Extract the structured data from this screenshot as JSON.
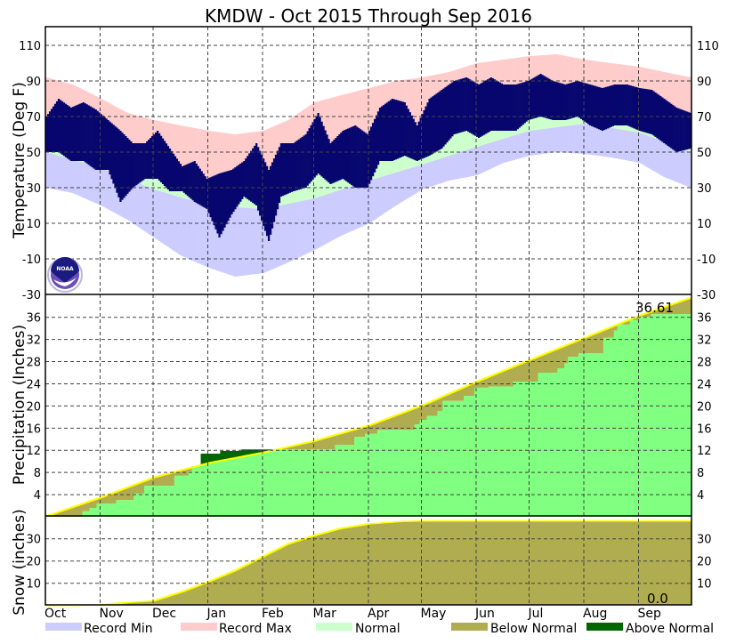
{
  "chart_data": [
    {
      "type": "bar",
      "panel": "temperature",
      "title": "KMDW - Oct 2015 Through Sep 2016",
      "ylabel": "Temperature (Deg F)",
      "ylim": [
        -30,
        120
      ],
      "yticks": [
        110,
        90,
        70,
        50,
        30,
        10,
        -10,
        -30
      ],
      "x_unit": "day of period (0 = Oct 1 2015)",
      "months": [
        {
          "label": "Oct",
          "day": 0
        },
        {
          "label": "Nov",
          "day": 31
        },
        {
          "label": "Dec",
          "day": 61
        },
        {
          "label": "Jan",
          "day": 92
        },
        {
          "label": "Feb",
          "day": 123
        },
        {
          "label": "Mar",
          "day": 152
        },
        {
          "label": "Apr",
          "day": 183
        },
        {
          "label": "May",
          "day": 213
        },
        {
          "label": "Jun",
          "day": 244
        },
        {
          "label": "Jul",
          "day": 274
        },
        {
          "label": "Aug",
          "day": 305
        },
        {
          "label": "Sep",
          "day": 336
        }
      ],
      "total_days": 366,
      "record": {
        "days": [
          0,
          15,
          31,
          46,
          61,
          76,
          92,
          107,
          123,
          137,
          152,
          167,
          183,
          198,
          213,
          228,
          244,
          259,
          274,
          289,
          305,
          320,
          336,
          350,
          365
        ],
        "max": [
          92,
          88,
          80,
          72,
          68,
          65,
          62,
          60,
          62,
          68,
          78,
          82,
          86,
          90,
          92,
          95,
          100,
          102,
          104,
          105,
          102,
          100,
          98,
          95,
          92
        ],
        "min": [
          30,
          27,
          20,
          12,
          2,
          -8,
          -15,
          -20,
          -18,
          -12,
          -5,
          3,
          10,
          20,
          29,
          34,
          37,
          44,
          48,
          50,
          49,
          47,
          44,
          36,
          30
        ]
      },
      "normal": {
        "days": [
          0,
          31,
          61,
          92,
          123,
          152,
          183,
          213,
          244,
          274,
          305,
          336,
          365
        ],
        "high": [
          68,
          57,
          43,
          33,
          31,
          39,
          52,
          64,
          75,
          83,
          84,
          80,
          70
        ],
        "low": [
          50,
          41,
          29,
          20,
          18,
          24,
          34,
          43,
          53,
          62,
          66,
          61,
          50
        ]
      },
      "observed": {
        "days": [
          0,
          7,
          14,
          21,
          28,
          35,
          42,
          49,
          56,
          63,
          70,
          77,
          84,
          91,
          98,
          105,
          112,
          119,
          126,
          133,
          140,
          147,
          154,
          161,
          168,
          175,
          182,
          189,
          196,
          203,
          210,
          217,
          224,
          231,
          238,
          245,
          252,
          259,
          266,
          273,
          280,
          287,
          294,
          301,
          308,
          315,
          322,
          329,
          336,
          343,
          350,
          357,
          365
        ],
        "high": [
          70,
          80,
          75,
          78,
          74,
          68,
          62,
          55,
          55,
          62,
          52,
          42,
          45,
          35,
          38,
          40,
          45,
          55,
          40,
          55,
          55,
          60,
          72,
          55,
          62,
          65,
          60,
          75,
          80,
          78,
          65,
          80,
          85,
          90,
          92,
          88,
          92,
          88,
          88,
          90,
          94,
          90,
          88,
          90,
          88,
          86,
          88,
          88,
          86,
          85,
          80,
          75,
          72
        ],
        "low": [
          50,
          50,
          45,
          45,
          40,
          40,
          22,
          30,
          35,
          35,
          28,
          28,
          22,
          18,
          2,
          15,
          25,
          20,
          0,
          25,
          28,
          30,
          38,
          32,
          35,
          30,
          30,
          45,
          45,
          48,
          45,
          48,
          52,
          60,
          62,
          58,
          62,
          62,
          62,
          68,
          70,
          68,
          68,
          70,
          65,
          62,
          65,
          65,
          62,
          60,
          55,
          50,
          52
        ]
      },
      "logo_text": "NOAA"
    },
    {
      "type": "area",
      "panel": "precipitation",
      "ylabel": "Precipitation (Inches)",
      "ylim": [
        0,
        40
      ],
      "yticks": [
        36,
        32,
        28,
        24,
        20,
        16,
        12,
        8,
        4
      ],
      "normal": {
        "days": [
          0,
          31,
          61,
          92,
          123,
          152,
          183,
          213,
          244,
          274,
          305,
          336,
          365
        ],
        "values": [
          0.1,
          3.5,
          7.1,
          9.7,
          11.6,
          13.7,
          16.5,
          20.1,
          24.4,
          28.3,
          32.3,
          36.3,
          39.5
        ]
      },
      "observed": {
        "days": [
          0,
          15,
          21,
          25,
          29,
          40,
          50,
          56,
          73,
          81,
          83,
          88,
          99,
          111,
          146,
          164,
          175,
          181,
          188,
          209,
          212,
          216,
          222,
          225,
          237,
          243,
          251,
          265,
          279,
          290,
          294,
          296,
          302,
          316,
          322,
          324,
          331,
          336,
          343,
          365
        ],
        "values": [
          0,
          0,
          1.0,
          1.6,
          2.4,
          3.0,
          4.2,
          5.6,
          7.4,
          8.2,
          9.1,
          11.4,
          11.9,
          12.15,
          12.2,
          13.0,
          14.4,
          15.0,
          15.7,
          16.7,
          17.5,
          18.2,
          19.1,
          20.9,
          21.8,
          23.3,
          23.5,
          24.4,
          26.0,
          26.8,
          27.7,
          28.9,
          29.5,
          32.3,
          33.6,
          34.7,
          35.5,
          36.1,
          36.55,
          36.61
        ]
      },
      "total_label": "36.61"
    },
    {
      "type": "area",
      "panel": "snow",
      "ylabel": "Snow (inches)",
      "ylim": [
        0,
        40
      ],
      "yticks": [
        30,
        20,
        10
      ],
      "normal": {
        "days": [
          0,
          20,
          31,
          45,
          61,
          77,
          92,
          107,
          123,
          137,
          152,
          167,
          183,
          202,
          213,
          365
        ],
        "values": [
          0,
          0.1,
          0.2,
          1.3,
          2.1,
          6.2,
          10.7,
          15.7,
          22.1,
          27.7,
          31.5,
          34.7,
          36.7,
          37.8,
          38.0,
          38.0
        ]
      },
      "observed_total": 0.0,
      "total_label": "0.0"
    }
  ],
  "legend": [
    {
      "label": "Record Min",
      "color": "#ccccff"
    },
    {
      "label": "Record Max",
      "color": "#ffcccc"
    },
    {
      "label": "Normal",
      "color": "#ccffcc"
    },
    {
      "label": "Below Normal",
      "color": "#b0ac50"
    },
    {
      "label": "Above Normal",
      "color": "#006600"
    }
  ],
  "colors": {
    "observed_temp": "#06066e",
    "precip_observed": "#80ff80",
    "normal_line": "#ffff00"
  }
}
